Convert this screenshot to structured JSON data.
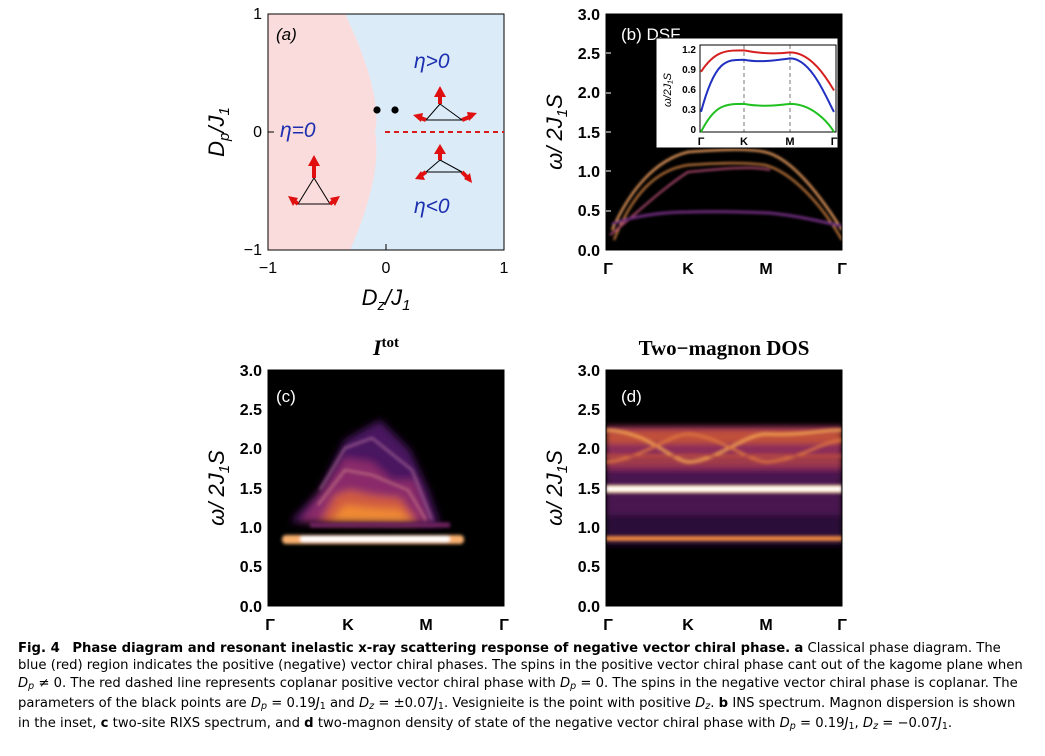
{
  "panel_a": {
    "label": "(a)",
    "xlabel_main": "D",
    "xlabel_sub": "z",
    "xlabel_tail": "/J",
    "xlabel_sub2": "1",
    "ylabel_main": "D",
    "ylabel_sub": "p",
    "ylabel_tail": "/J",
    "ylabel_sub2": "1",
    "xticks": [
      "−1",
      "0",
      "1"
    ],
    "yticks": [
      "1",
      "0",
      "−1"
    ],
    "region_eta_zero": "η=0",
    "region_eta_pos": "η>0",
    "region_eta_neg": "η<0",
    "color_negative_phase": "#fbdcdc",
    "color_positive_phase": "#dcebf8"
  },
  "panel_b": {
    "label": "(b) DSF",
    "yticks": [
      "3.0",
      "2.5",
      "2.0",
      "1.5",
      "1.0",
      "0.5",
      "0.0"
    ],
    "xticks": [
      "Γ",
      "K",
      "M",
      "Γ"
    ],
    "inset_yticks": [
      "1.2",
      "0.9",
      "0.6",
      "0.3",
      "0"
    ],
    "inset_xticks": [
      "Γ",
      "K",
      "M",
      "Γ"
    ]
  },
  "panel_c": {
    "title": "I",
    "title_sup": "tot",
    "label": "(c)",
    "yticks": [
      "3.0",
      "2.5",
      "2.0",
      "1.5",
      "1.0",
      "0.5",
      "0.0"
    ],
    "xticks": [
      "Γ",
      "K",
      "M",
      "Γ"
    ]
  },
  "panel_d": {
    "title": "Two−magnon DOS",
    "label": "(d)",
    "yticks": [
      "3.0",
      "2.5",
      "2.0",
      "1.5",
      "1.0",
      "0.5",
      "0.0"
    ],
    "xticks": [
      "Γ",
      "K",
      "M",
      "Γ"
    ]
  },
  "ylabel_energy": "ω/ 2J",
  "ylabel_energy_sub": "1",
  "ylabel_energy_tail": "S",
  "inset_ylabel": "ω/2J₁S",
  "caption": {
    "fig": "Fig. 4",
    "title": "Phase diagram and resonant inelastic x-ray scattering response of negative vector chiral phase.",
    "a": "a",
    "a_text": "Classical phase diagram. The blue (red) region indicates the positive (negative) vector chiral phases. The spins in the positive vector chiral phase cant out of the kagome plane when",
    "cond1": "D",
    "cond1_sub": "p",
    "cond1_tail": " ≠ 0.",
    "t2": "The red dashed line represents coplanar positive vector chiral phase with",
    "cond2": "D",
    "cond2_sub": "p",
    "cond2_tail": " = 0.",
    "t3": "The spins in the negative vector chiral phase is coplanar. The parameters of the black points are",
    "p1": "D",
    "p1_sub": "p",
    "p1_tail": " = 0.19",
    "p1_j": "J",
    "p1_jsub": "1",
    "and": "and",
    "p2": "D",
    "p2_sub": "z",
    "p2_tail": " = ±0.07",
    "p2_j": "J",
    "p2_jsub": "1",
    "t4": ". Vesignieite is the point with positive",
    "t4_d": "D",
    "t4_dsub": "z",
    "t4_end": ".",
    "b": "b",
    "b_text": "INS spectrum. Magnon dispersion is shown in the inset,",
    "c": "c",
    "c_text": "two-site RIXS spectrum, and",
    "d": "d",
    "d_text": "two-magnon density of state of the negative vector chiral phase with",
    "q1": "D",
    "q1_sub": "p",
    "q1_tail": " = 0.19",
    "q1_j": "J",
    "q1_jsub": "1",
    "q2": "D",
    "q2_sub": "z",
    "q2_tail": " = −0.07",
    "q2_j": "J",
    "q2_jsub": "1"
  },
  "chart_data": [
    {
      "type": "scatter",
      "panel": "(a)",
      "xlabel": "Dz/J1",
      "ylabel": "Dp/J1",
      "xlim": [
        -1,
        1
      ],
      "ylim": [
        -1,
        1
      ],
      "points": [
        {
          "x": -0.07,
          "y": 0.19
        },
        {
          "x": 0.07,
          "y": 0.19
        }
      ],
      "phase_boundary_x_at_y0": -0.09,
      "dashed_line": {
        "y": 0,
        "x_from": -0.07,
        "x_to": 1,
        "color": "#d81b1b"
      }
    },
    {
      "type": "line",
      "panel": "(b) inset",
      "ylabel": "ω/2J1S",
      "ylim": [
        0,
        1.3
      ],
      "categories": [
        "Γ",
        "K",
        "M",
        "Γ"
      ],
      "series": [
        {
          "color": "#d62020",
          "values": [
            0.9,
            1.22,
            1.19,
            0.62
          ]
        },
        {
          "color": "#2030c0",
          "values": [
            0.3,
            1.08,
            1.1,
            0.3
          ]
        },
        {
          "color": "#20c020",
          "values": [
            0.0,
            0.42,
            0.42,
            0.0
          ]
        }
      ]
    }
  ]
}
